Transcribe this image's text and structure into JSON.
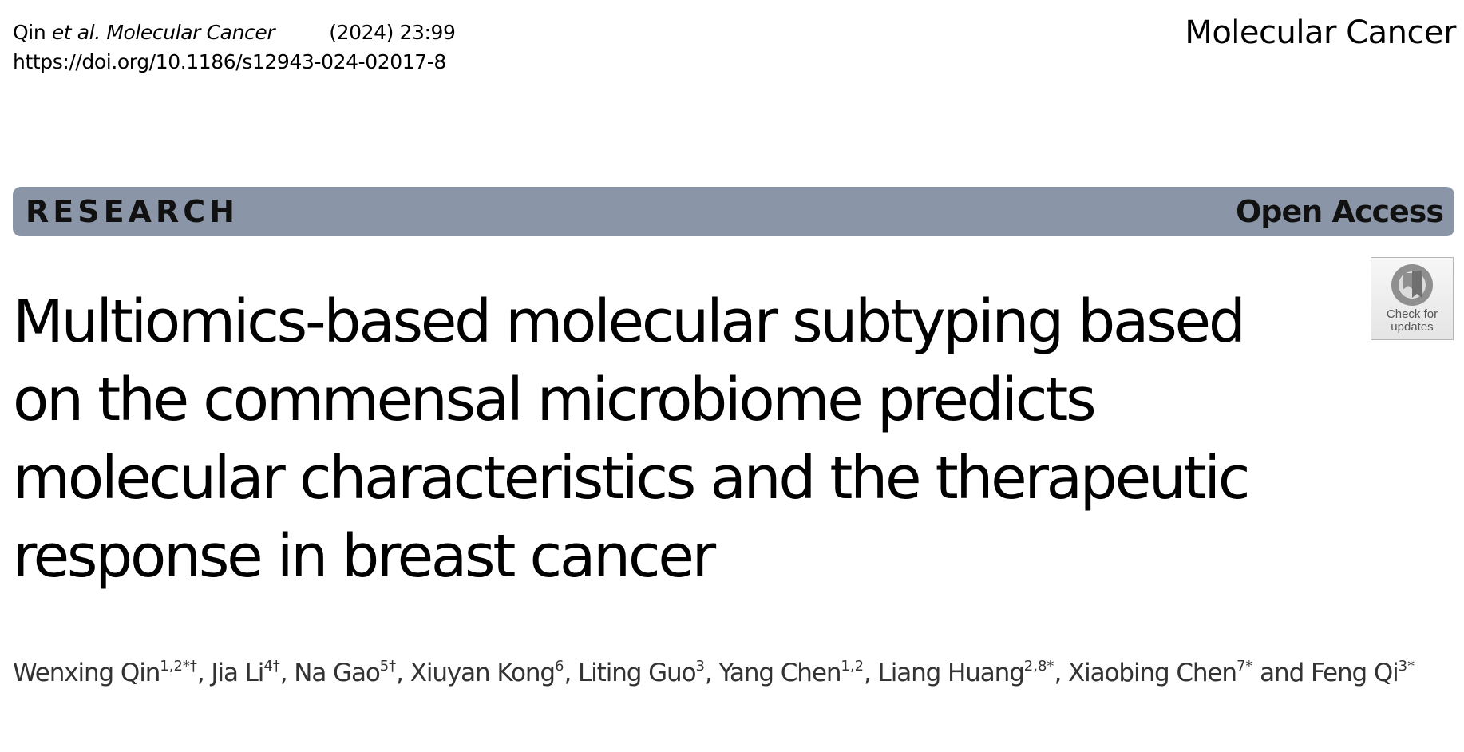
{
  "header": {
    "citation_plain": "Qin ",
    "citation_italic": "et al. Molecular Cancer",
    "year_volume": "(2024) 23:99",
    "doi": "https://doi.org/10.1186/s12943-024-02017-8",
    "journal": "Molecular Cancer"
  },
  "banner": {
    "article_type": "RESEARCH",
    "access": "Open Access"
  },
  "badge": {
    "line1": "Check for",
    "line2": "updates",
    "icon": "check-for-updates-icon"
  },
  "title": {
    "lines": [
      "Multiomics-based molecular subtyping based",
      "on the commensal microbiome predicts",
      "molecular characteristics and the therapeutic",
      "response in breast cancer"
    ]
  },
  "authors": [
    {
      "name": "Wenxing Qin",
      "aff": "1,2*†",
      "sep": ", "
    },
    {
      "name": "Jia Li",
      "aff": "4†",
      "sep": ", "
    },
    {
      "name": "Na Gao",
      "aff": "5†",
      "sep": ", "
    },
    {
      "name": "Xiuyan Kong",
      "aff": "6",
      "sep": ", "
    },
    {
      "name": "Liting Guo",
      "aff": "3",
      "sep": ", "
    },
    {
      "name": "Yang Chen",
      "aff": "1,2",
      "sep": ", "
    },
    {
      "name": "Liang Huang",
      "aff": "2,8*",
      "sep": ", "
    },
    {
      "name": "Xiaobing Chen",
      "aff": "7*",
      "sep": " and "
    },
    {
      "name": "Feng Qi",
      "aff": "3*",
      "sep": ""
    }
  ]
}
